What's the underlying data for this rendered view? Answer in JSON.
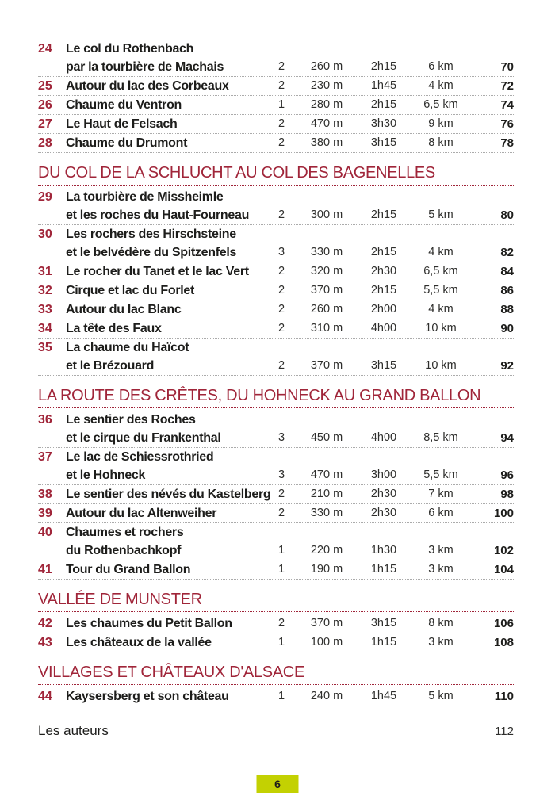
{
  "colors": {
    "accent_red": "#a02539",
    "badge_green": "#c3d102",
    "separator_gray": "#ababab"
  },
  "footer": {
    "label": "Les auteurs",
    "page": "112"
  },
  "page_badge": "6",
  "sections": [
    {
      "heading": null,
      "entries": [
        {
          "num": "24",
          "title_lines": [
            "Le col du Rothenbach",
            "par la tourbière de Machais"
          ],
          "difficulty": "2",
          "elevation": "260 m",
          "duration": "2h15",
          "distance": "6 km",
          "page": "70"
        },
        {
          "num": "25",
          "title_lines": [
            "Autour du lac des Corbeaux"
          ],
          "difficulty": "2",
          "elevation": "230 m",
          "duration": "1h45",
          "distance": "4 km",
          "page": "72"
        },
        {
          "num": "26",
          "title_lines": [
            "Chaume du Ventron"
          ],
          "difficulty": "1",
          "elevation": "280 m",
          "duration": "2h15",
          "distance": "6,5 km",
          "page": "74"
        },
        {
          "num": "27",
          "title_lines": [
            "Le Haut de Felsach"
          ],
          "difficulty": "2",
          "elevation": "470 m",
          "duration": "3h30",
          "distance": "9 km",
          "page": "76"
        },
        {
          "num": "28",
          "title_lines": [
            "Chaume du Drumont"
          ],
          "difficulty": "2",
          "elevation": "380 m",
          "duration": "3h15",
          "distance": "8 km",
          "page": "78"
        }
      ]
    },
    {
      "heading": "DU COL DE LA SCHLUCHT AU COL DES BAGENELLES",
      "entries": [
        {
          "num": "29",
          "title_lines": [
            "La tourbière de Missheimle",
            "et les roches du Haut-Fourneau"
          ],
          "difficulty": "2",
          "elevation": "300 m",
          "duration": "2h15",
          "distance": "5 km",
          "page": "80"
        },
        {
          "num": "30",
          "title_lines": [
            "Les rochers des Hirschsteine",
            "et le belvédère du Spitzenfels"
          ],
          "difficulty": "3",
          "elevation": "330 m",
          "duration": "2h15",
          "distance": "4 km",
          "page": "82"
        },
        {
          "num": "31",
          "title_lines": [
            "Le rocher du Tanet et le lac Vert"
          ],
          "difficulty": "2",
          "elevation": "320 m",
          "duration": "2h30",
          "distance": "6,5 km",
          "page": "84"
        },
        {
          "num": "32",
          "title_lines": [
            "Cirque et lac du Forlet"
          ],
          "difficulty": "2",
          "elevation": "370 m",
          "duration": "2h15",
          "distance": "5,5 km",
          "page": "86"
        },
        {
          "num": "33",
          "title_lines": [
            "Autour du lac Blanc"
          ],
          "difficulty": "2",
          "elevation": "260 m",
          "duration": "2h00",
          "distance": "4 km",
          "page": "88"
        },
        {
          "num": "34",
          "title_lines": [
            "La tête des Faux"
          ],
          "difficulty": "2",
          "elevation": "310 m",
          "duration": "4h00",
          "distance": "10 km",
          "page": "90"
        },
        {
          "num": "35",
          "title_lines": [
            "La chaume du Haïcot",
            "et le Brézouard"
          ],
          "difficulty": "2",
          "elevation": "370 m",
          "duration": "3h15",
          "distance": "10 km",
          "page": "92"
        }
      ]
    },
    {
      "heading": "LA ROUTE DES CRÊTES, DU HOHNECK AU GRAND BALLON",
      "entries": [
        {
          "num": "36",
          "title_lines": [
            "Le sentier des Roches",
            "et le cirque du Frankenthal"
          ],
          "difficulty": "3",
          "elevation": "450 m",
          "duration": "4h00",
          "distance": "8,5 km",
          "page": "94"
        },
        {
          "num": "37",
          "title_lines": [
            "Le lac de Schiessrothried",
            "et le Hohneck"
          ],
          "difficulty": "3",
          "elevation": "470 m",
          "duration": "3h00",
          "distance": "5,5 km",
          "page": "96"
        },
        {
          "num": "38",
          "title_lines": [
            "Le sentier des névés du Kastelberg"
          ],
          "difficulty": "2",
          "elevation": "210 m",
          "duration": "2h30",
          "distance": "7 km",
          "page": "98"
        },
        {
          "num": "39",
          "title_lines": [
            "Autour du lac Altenweiher"
          ],
          "difficulty": "2",
          "elevation": "330 m",
          "duration": "2h30",
          "distance": "6 km",
          "page": "100"
        },
        {
          "num": "40",
          "title_lines": [
            "Chaumes et rochers",
            "du Rothenbachkopf"
          ],
          "difficulty": "1",
          "elevation": "220 m",
          "duration": "1h30",
          "distance": "3 km",
          "page": "102"
        },
        {
          "num": "41",
          "title_lines": [
            "Tour du Grand Ballon"
          ],
          "difficulty": "1",
          "elevation": "190 m",
          "duration": "1h15",
          "distance": "3 km",
          "page": "104"
        }
      ]
    },
    {
      "heading": "VALLÉE DE MUNSTER",
      "entries": [
        {
          "num": "42",
          "title_lines": [
            "Les chaumes du Petit Ballon"
          ],
          "difficulty": "2",
          "elevation": "370 m",
          "duration": "3h15",
          "distance": "8 km",
          "page": "106"
        },
        {
          "num": "43",
          "title_lines": [
            "Les châteaux de la vallée"
          ],
          "difficulty": "1",
          "elevation": "100 m",
          "duration": "1h15",
          "distance": "3 km",
          "page": "108"
        }
      ]
    },
    {
      "heading": "VILLAGES ET CHÂTEAUX D'ALSACE",
      "entries": [
        {
          "num": "44",
          "title_lines": [
            "Kaysersberg et son château"
          ],
          "difficulty": "1",
          "elevation": "240 m",
          "duration": "1h45",
          "distance": "5 km",
          "page": "110"
        }
      ]
    }
  ]
}
